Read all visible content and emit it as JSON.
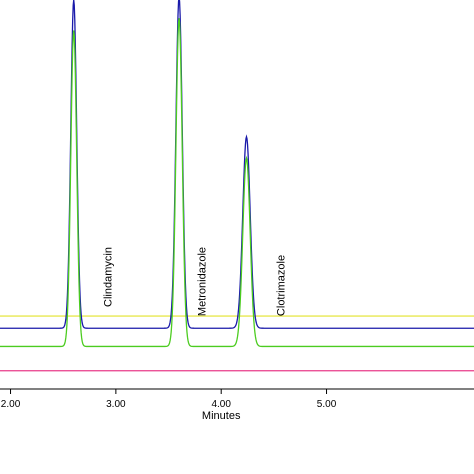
{
  "chart_data": {
    "type": "line",
    "xlabel": "Minutes",
    "ylabel": "",
    "title": "",
    "xlim": [
      1.9,
      6.4
    ],
    "ylim": [
      -0.4,
      12.4
    ],
    "grid": false,
    "x_ticks": [
      2.0,
      3.0,
      4.0,
      5.0
    ],
    "x_tick_labels": [
      "2.00",
      "3.00",
      "4.00",
      "5.00"
    ],
    "peaks": [
      {
        "label": "Clindamycin",
        "x": 2.6,
        "label_x": 2.96,
        "label_y": 2.3
      },
      {
        "label": "Metronidazole",
        "x": 3.6,
        "label_x": 3.85,
        "label_y": 2.0
      },
      {
        "label": "Clotrimazole",
        "x": 4.24,
        "label_x": 4.6,
        "label_y": 2.0
      }
    ],
    "series": [
      {
        "color": "#1a1aaa",
        "baseline": 1.6,
        "peaks": [
          {
            "x": 2.6,
            "height": 10.8,
            "width": 0.028
          },
          {
            "x": 3.6,
            "height": 10.9,
            "width": 0.03
          },
          {
            "x": 4.24,
            "height": 6.3,
            "width": 0.035
          }
        ]
      },
      {
        "color": "#4ccc20",
        "baseline": 1.0,
        "peaks": [
          {
            "x": 2.6,
            "height": 10.4,
            "width": 0.028
          },
          {
            "x": 3.6,
            "height": 10.8,
            "width": 0.03
          },
          {
            "x": 4.24,
            "height": 6.2,
            "width": 0.035
          }
        ]
      },
      {
        "color": "#e8e850",
        "baseline": 2.0,
        "peaks": []
      },
      {
        "color": "#e83c8a",
        "baseline": 0.2,
        "peaks": []
      }
    ]
  }
}
